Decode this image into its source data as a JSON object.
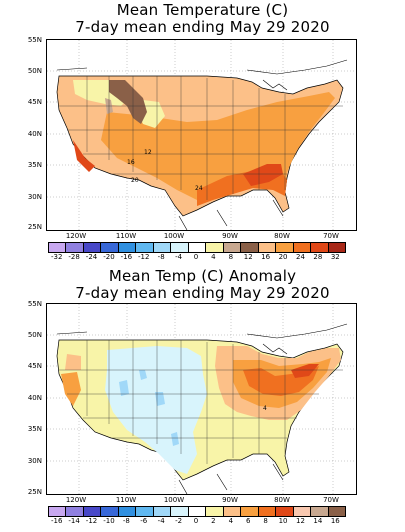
{
  "top": {
    "title_line1": "Mean Temperature (C)",
    "title_line2": "7-day mean ending May 29 2020",
    "contour_labels": [
      "12",
      "16",
      "20",
      "24"
    ],
    "colorbar": {
      "ticks": [
        "-32",
        "-28",
        "-24",
        "-20",
        "-16",
        "-12",
        "-8",
        "-4",
        "0",
        "4",
        "8",
        "12",
        "16",
        "20",
        "24",
        "28",
        "32"
      ],
      "colors": [
        "#c8a8f0",
        "#9080e0",
        "#4848c8",
        "#3868d8",
        "#3090e0",
        "#60b8f0",
        "#a0d8f8",
        "#d8f4fc",
        "#ffffff",
        "#f8f4a8",
        "#c8a890",
        "#8a6048",
        "#fcc088",
        "#f8a040",
        "#f07020",
        "#e04818",
        "#a82818"
      ]
    }
  },
  "bottom": {
    "title_line1": "Mean Temp (C) Anomaly",
    "title_line2": "7-day mean ending May 29 2020",
    "contour_labels": [
      "4"
    ],
    "colorbar": {
      "ticks": [
        "-16",
        "-14",
        "-12",
        "-10",
        "-8",
        "-6",
        "-4",
        "-2",
        "0",
        "2",
        "4",
        "6",
        "8",
        "10",
        "12",
        "14",
        "16"
      ],
      "colors": [
        "#c8a8f0",
        "#9080e0",
        "#4848c8",
        "#3868d8",
        "#3090e0",
        "#60b8f0",
        "#a0d8f8",
        "#d8f4fc",
        "#ffffff",
        "#f8f4a8",
        "#fcc088",
        "#f8a040",
        "#f07020",
        "#e04818",
        "#f8c8b0",
        "#c8a890",
        "#8a6048"
      ]
    }
  },
  "axes": {
    "lat_labels": [
      "55N",
      "50N",
      "45N",
      "40N",
      "35N",
      "30N",
      "25N"
    ],
    "lon_labels": [
      "120W",
      "110W",
      "100W",
      "90W",
      "80W",
      "70W"
    ]
  }
}
